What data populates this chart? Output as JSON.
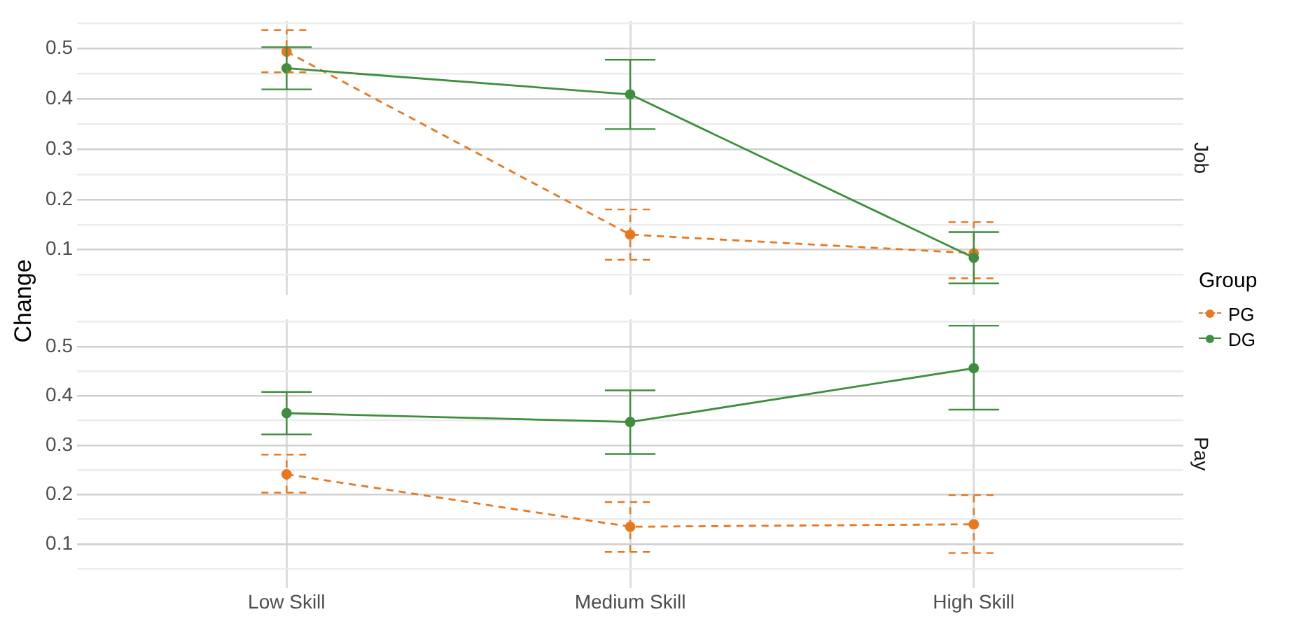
{
  "chart_data": [
    {
      "type": "line",
      "title": "Job",
      "ylabel": "Change",
      "legend": "right",
      "legend_title": "Group",
      "categories": [
        null,
        null,
        null
      ],
      "ylim": [
        0.01,
        0.555
      ],
      "yticks": [
        {
          "value": 0.05,
          "label": null
        },
        0.1,
        {
          "value": 0.15,
          "label": null
        },
        0.2,
        {
          "value": 0.25,
          "label": null
        },
        0.3,
        {
          "value": 0.35,
          "label": null
        },
        0.4,
        {
          "value": 0.45,
          "label": null
        },
        0.5,
        {
          "value": 0.55,
          "label": null
        }
      ],
      "grid": true,
      "tick_labels": "y",
      "marker": "circle",
      "series": [
        {
          "name": "PG",
          "color": "#e8771e",
          "line_style": "dashed",
          "values": [
            0.494,
            0.13,
            0.093
          ],
          "errors": [
            [
              0.453,
              0.537
            ],
            [
              0.08,
              0.18
            ],
            [
              0.043,
              0.155
            ]
          ]
        },
        {
          "name": "DG",
          "color": "#3d8f3d",
          "line_style": "solid",
          "values": [
            0.461,
            0.409,
            0.084
          ],
          "errors": [
            [
              0.419,
              0.503
            ],
            [
              0.34,
              0.478
            ],
            [
              0.033,
              0.135
            ]
          ]
        }
      ]
    },
    {
      "type": "line",
      "title": "Pay",
      "categories": [
        "Low Skill",
        "Medium Skill",
        "High Skill"
      ],
      "ylim": [
        0.01,
        0.555
      ],
      "yticks": [
        {
          "value": 0.05,
          "label": null
        },
        0.1,
        {
          "value": 0.15,
          "label": null
        },
        0.2,
        {
          "value": 0.25,
          "label": null
        },
        0.3,
        {
          "value": 0.35,
          "label": null
        },
        0.4,
        {
          "value": 0.45,
          "label": null
        },
        0.5,
        {
          "value": 0.55,
          "label": null
        }
      ],
      "grid": true,
      "marker": "circle",
      "series": [
        {
          "color": "#e8771e",
          "line_style": "dashed",
          "values": [
            0.241,
            0.135,
            0.14
          ],
          "errors": [
            [
              0.204,
              0.281
            ],
            [
              0.084,
              0.185
            ],
            [
              0.082,
              0.199
            ]
          ]
        },
        {
          "color": "#3d8f3d",
          "line_style": "solid",
          "values": [
            0.365,
            0.347,
            0.456
          ],
          "errors": [
            [
              0.322,
              0.408
            ],
            [
              0.282,
              0.411
            ],
            [
              0.372,
              0.542
            ]
          ]
        }
      ]
    }
  ]
}
